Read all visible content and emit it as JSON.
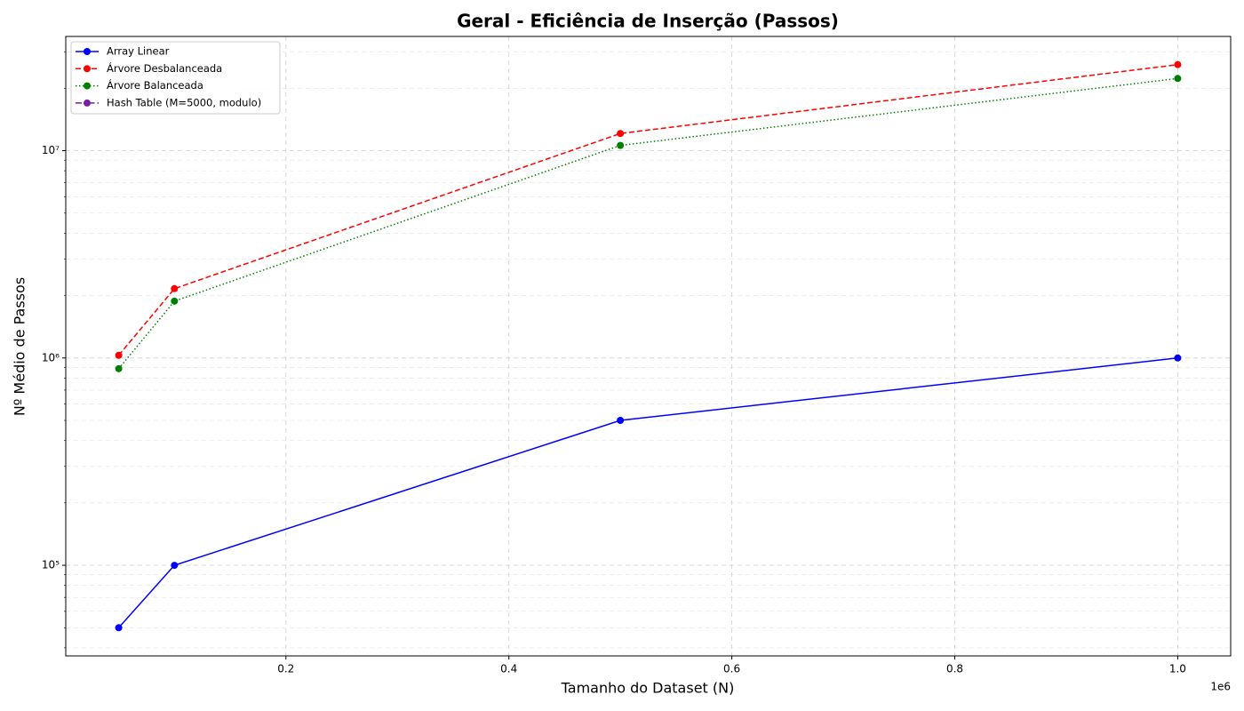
{
  "chart_data": {
    "type": "line",
    "title": "Geral - Eficiência de Inserção (Passos)",
    "x_label": "Tamanho do Dataset (N)",
    "y_label": "Nº Médio de Passos",
    "x_offset_label": "1e6",
    "x": [
      50000,
      100000,
      500000,
      1000000
    ],
    "series": [
      {
        "name": "Array Linear",
        "color": "blue",
        "linestyle": "solid",
        "values": [
          50000,
          100000,
          500000,
          1000000
        ]
      },
      {
        "name": "Árvore Desbalanceada",
        "color": "red",
        "linestyle": "dashed",
        "values": [
          1030000,
          2160000,
          12100000,
          26000000
        ]
      },
      {
        "name": "Árvore Balanceada",
        "color": "green",
        "linestyle": "dotted",
        "values": [
          888000,
          1880000,
          10600000,
          22300000
        ]
      },
      {
        "name": "Hash Table (M=5000, modulo)",
        "color": "#7b1fa2",
        "linestyle": "dashdot",
        "values": [
          null,
          null,
          null,
          null
        ]
      }
    ],
    "xlim": [
      2500,
      1047500
    ],
    "xticks": [
      {
        "value": 200000,
        "label": "0.2"
      },
      {
        "value": 400000,
        "label": "0.4"
      },
      {
        "value": 600000,
        "label": "0.6"
      },
      {
        "value": 800000,
        "label": "0.8"
      },
      {
        "value": 1000000,
        "label": "1.0"
      }
    ],
    "ylim": [
      36560,
      35560000
    ],
    "yscale": "log",
    "yticks": [
      {
        "value": 100000,
        "label": "10⁵"
      },
      {
        "value": 1000000,
        "label": "10⁶"
      },
      {
        "value": 10000000,
        "label": "10⁷"
      }
    ],
    "yminorticks": [
      40000,
      50000,
      60000,
      70000,
      80000,
      90000,
      200000,
      300000,
      400000,
      500000,
      600000,
      700000,
      800000,
      900000,
      2000000,
      3000000,
      4000000,
      5000000,
      6000000,
      7000000,
      8000000,
      9000000,
      20000000,
      30000000
    ],
    "grid": true,
    "legend": "upper left"
  }
}
